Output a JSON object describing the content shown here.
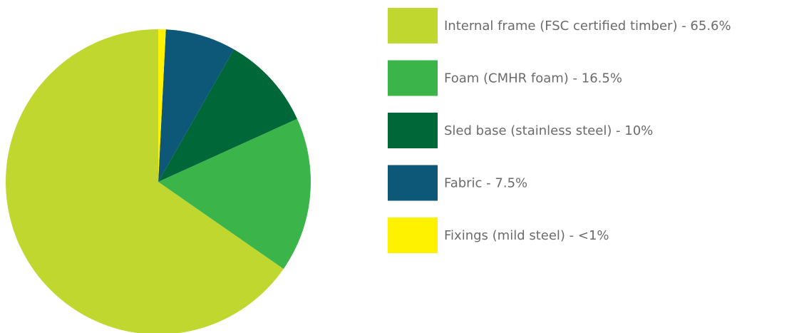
{
  "chart_data": {
    "type": "pie",
    "categories": [
      "Internal frame (FSC certified timber) - 65.6%",
      "Foam (CMHR foam) - 16.5%",
      "Sled base (stainless steel) - 10%",
      "Fabric - 7.5%",
      "Fixings (mild steel) - <1%"
    ],
    "values": [
      65.6,
      16.5,
      10,
      7.5,
      0.8
    ],
    "colors": [
      "#c0d72f",
      "#3bb54a",
      "#006838",
      "#0d5878",
      "#fff200"
    ],
    "legend": "right"
  }
}
